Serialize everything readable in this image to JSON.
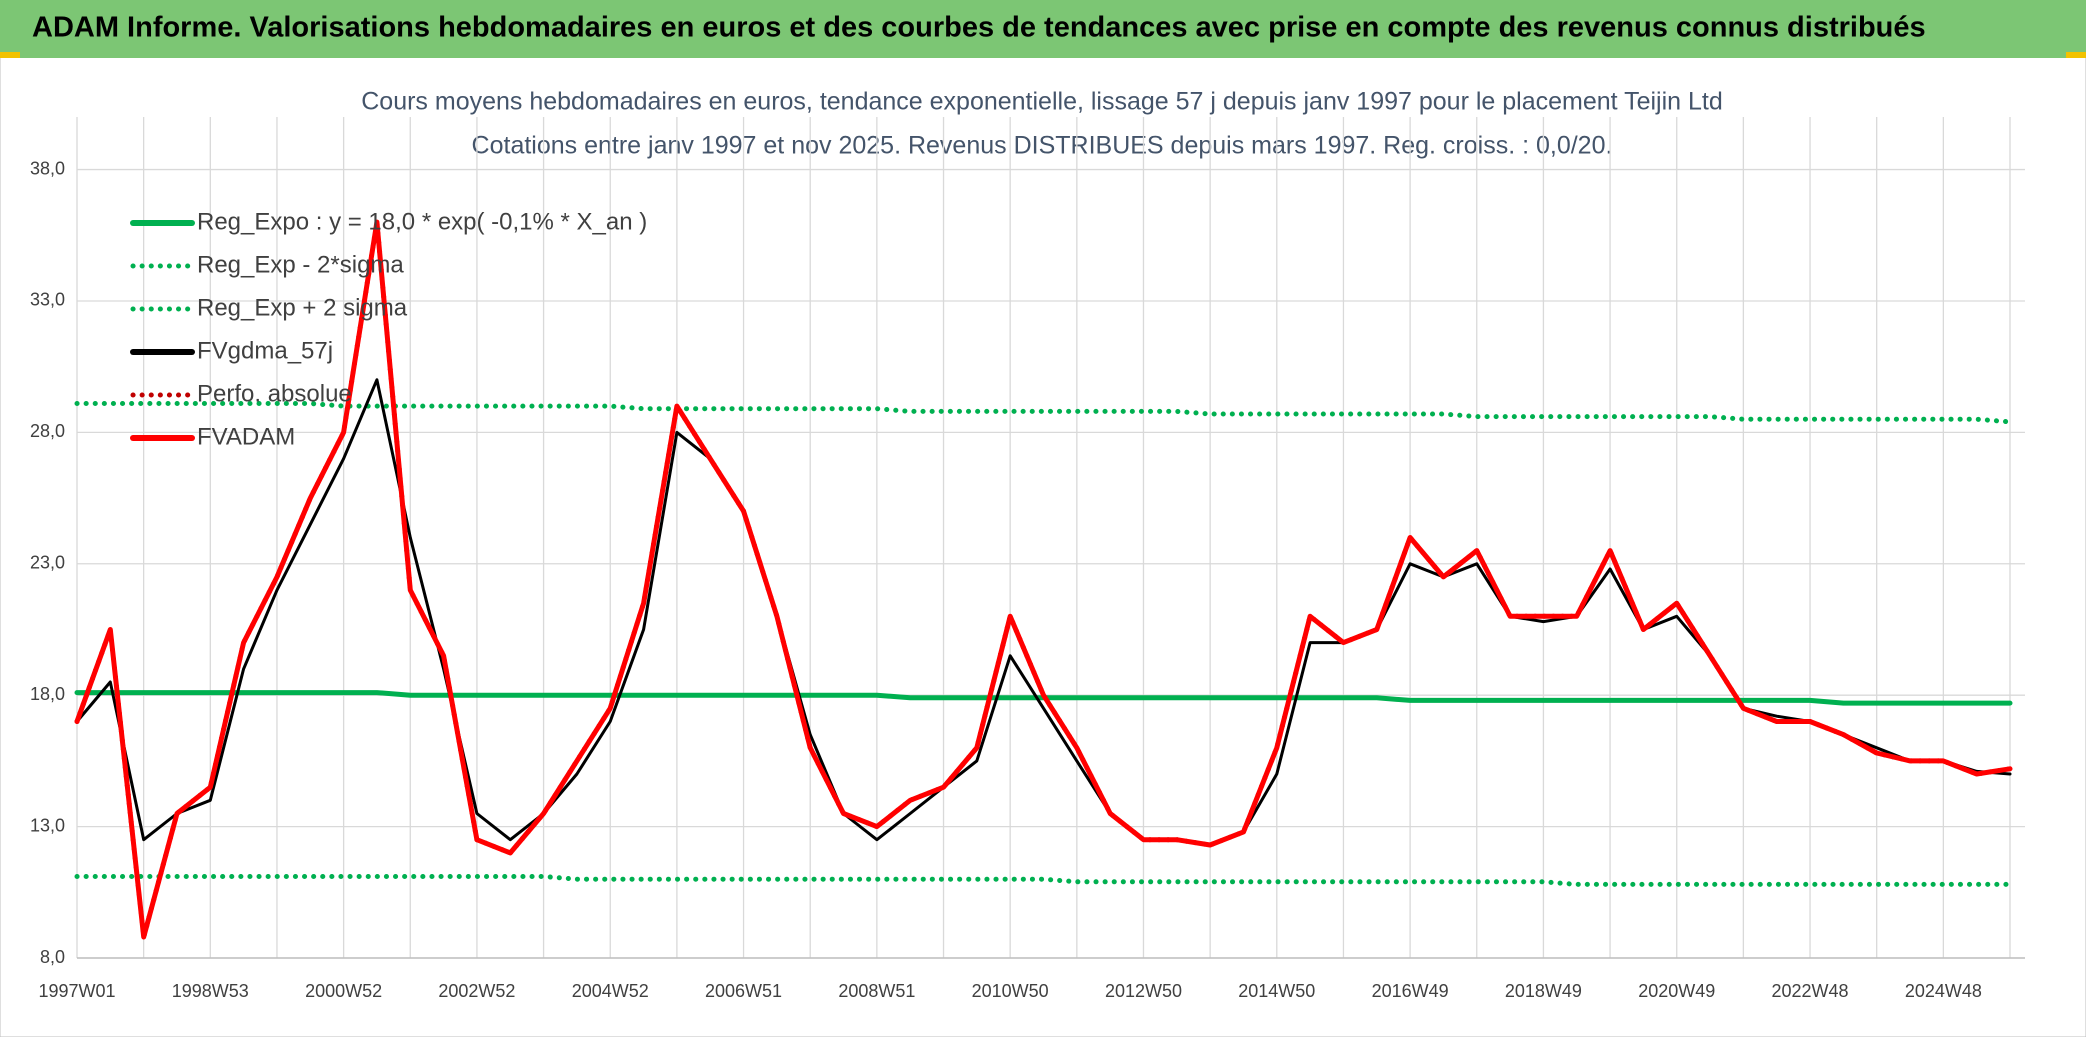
{
  "header": "ADAM Informe. Valorisations hebdomadaires en euros et des courbes de tendances avec prise en compte des revenus connus distribués",
  "chart_data": {
    "type": "line",
    "title": "Cours moyens hebdomadaires en euros, tendance exponentielle, lissage 57 j depuis janv 1997 pour le placement Teijin Ltd",
    "subtitle": "Cotations entre janv 1997 et nov 2025. Revenus DISTRIBUES depuis mars 1997. Reg. croiss. : 0,0/20.",
    "categories": [
      "1997W01",
      null,
      null,
      null,
      "1998W53",
      null,
      null,
      null,
      "2000W52",
      null,
      null,
      null,
      "2002W52",
      null,
      null,
      null,
      "2004W52",
      null,
      null,
      null,
      "2006W51",
      null,
      null,
      null,
      "2008W51",
      null,
      null,
      null,
      "2010W50",
      null,
      null,
      null,
      "2012W50",
      null,
      null,
      null,
      "2014W50",
      null,
      null,
      null,
      "2016W49",
      null,
      null,
      null,
      "2018W49",
      null,
      null,
      null,
      "2020W49",
      null,
      null,
      null,
      "2022W48",
      null,
      null,
      null,
      "2024W48",
      null,
      null
    ],
    "ylim": [
      8,
      40
    ],
    "yticks": [
      {
        "value": 8,
        "label": "8,0"
      },
      {
        "value": 13,
        "label": "13,0"
      },
      {
        "value": 18,
        "label": "18,0"
      },
      {
        "value": 23,
        "label": "23,0"
      },
      {
        "value": 28,
        "label": "28,0"
      },
      {
        "value": 33,
        "label": "33,0"
      },
      {
        "value": 38,
        "label": "38,0"
      }
    ],
    "grid": true,
    "legend": "top-left",
    "series": [
      {
        "name": "Reg_Expo : y = 18,0 * exp( -0,1% *  X_an )",
        "color": "#00b050",
        "style": "solid",
        "values": [
          18.1,
          18.1,
          18.1,
          18.1,
          18.1,
          18.1,
          18.1,
          18.1,
          18.1,
          18.1,
          18.0,
          18.0,
          18.0,
          18.0,
          18.0,
          18.0,
          18.0,
          18.0,
          18.0,
          18.0,
          18.0,
          18.0,
          18.0,
          18.0,
          18.0,
          17.9,
          17.9,
          17.9,
          17.9,
          17.9,
          17.9,
          17.9,
          17.9,
          17.9,
          17.9,
          17.9,
          17.9,
          17.9,
          17.9,
          17.9,
          17.8,
          17.8,
          17.8,
          17.8,
          17.8,
          17.8,
          17.8,
          17.8,
          17.8,
          17.8,
          17.8,
          17.8,
          17.8,
          17.7,
          17.7,
          17.7,
          17.7,
          17.7,
          17.7
        ]
      },
      {
        "name": "Reg_Exp - 2*sigma",
        "color": "#00b050",
        "style": "dotted",
        "values": [
          11.1,
          11.1,
          11.1,
          11.1,
          11.1,
          11.1,
          11.1,
          11.1,
          11.1,
          11.1,
          11.1,
          11.1,
          11.1,
          11.1,
          11.1,
          11.0,
          11.0,
          11.0,
          11.0,
          11.0,
          11.0,
          11.0,
          11.0,
          11.0,
          11.0,
          11.0,
          11.0,
          11.0,
          11.0,
          11.0,
          10.9,
          10.9,
          10.9,
          10.9,
          10.9,
          10.9,
          10.9,
          10.9,
          10.9,
          10.9,
          10.9,
          10.9,
          10.9,
          10.9,
          10.9,
          10.8,
          10.8,
          10.8,
          10.8,
          10.8,
          10.8,
          10.8,
          10.8,
          10.8,
          10.8,
          10.8,
          10.8,
          10.8,
          10.8
        ]
      },
      {
        "name": "Reg_Exp + 2 sigma",
        "color": "#00b050",
        "style": "dotted",
        "values": [
          29.1,
          29.1,
          29.1,
          29.1,
          29.1,
          29.1,
          29.1,
          29.1,
          29.0,
          29.0,
          29.0,
          29.0,
          29.0,
          29.0,
          29.0,
          29.0,
          29.0,
          28.9,
          28.9,
          28.9,
          28.9,
          28.9,
          28.9,
          28.9,
          28.9,
          28.8,
          28.8,
          28.8,
          28.8,
          28.8,
          28.8,
          28.8,
          28.8,
          28.8,
          28.7,
          28.7,
          28.7,
          28.7,
          28.7,
          28.7,
          28.7,
          28.7,
          28.6,
          28.6,
          28.6,
          28.6,
          28.6,
          28.6,
          28.6,
          28.6,
          28.5,
          28.5,
          28.5,
          28.5,
          28.5,
          28.5,
          28.5,
          28.5,
          28.4
        ]
      },
      {
        "name": "FVgdma_57j",
        "color": "#000000",
        "style": "solid",
        "values": [
          17.0,
          18.5,
          12.5,
          13.5,
          14.0,
          19.0,
          22.0,
          24.5,
          27.0,
          30.0,
          24.0,
          19.0,
          13.5,
          12.5,
          13.5,
          15.0,
          17.0,
          20.5,
          28.0,
          27.0,
          25.0,
          21.0,
          16.5,
          13.5,
          12.5,
          13.5,
          14.5,
          15.5,
          19.5,
          17.5,
          15.5,
          13.5,
          12.5,
          12.5,
          12.3,
          12.8,
          15.0,
          20.0,
          20.0,
          20.5,
          23.0,
          22.5,
          23.0,
          21.0,
          20.8,
          21.0,
          22.8,
          20.5,
          21.0,
          19.5,
          17.5,
          17.2,
          17.0,
          16.5,
          16.0,
          15.5,
          15.5,
          15.1,
          15.0
        ]
      },
      {
        "name": "Perfo. absolue",
        "color": "#c00000",
        "style": "dotted",
        "values": [
          17.0,
          20.5,
          8.8,
          13.5,
          14.5,
          20.0,
          22.5,
          25.5,
          28.0,
          36.0,
          22.0,
          19.5,
          12.5,
          12.0,
          13.5,
          15.5,
          17.5,
          21.5,
          29.0,
          27.0,
          25.0,
          21.0,
          16.0,
          13.5,
          13.0,
          14.0,
          14.5,
          16.0,
          21.0,
          18.0,
          16.0,
          13.5,
          12.5,
          12.5,
          12.3,
          12.8,
          16.0,
          21.0,
          20.0,
          20.5,
          24.0,
          22.5,
          23.5,
          21.0,
          21.0,
          21.0,
          23.5,
          20.5,
          21.5,
          19.5,
          17.5,
          17.0,
          17.0,
          16.5,
          15.8,
          15.5,
          15.5,
          15.0,
          15.2
        ]
      },
      {
        "name": "FVADAM",
        "color": "#ff0000",
        "style": "solid",
        "values": [
          17.0,
          20.5,
          8.8,
          13.5,
          14.5,
          20.0,
          22.5,
          25.5,
          28.0,
          36.0,
          22.0,
          19.5,
          12.5,
          12.0,
          13.5,
          15.5,
          17.5,
          21.5,
          29.0,
          27.0,
          25.0,
          21.0,
          16.0,
          13.5,
          13.0,
          14.0,
          14.5,
          16.0,
          21.0,
          18.0,
          16.0,
          13.5,
          12.5,
          12.5,
          12.3,
          12.8,
          16.0,
          21.0,
          20.0,
          20.5,
          24.0,
          22.5,
          23.5,
          21.0,
          21.0,
          21.0,
          23.5,
          20.5,
          21.5,
          19.5,
          17.5,
          17.0,
          17.0,
          16.5,
          15.8,
          15.5,
          15.5,
          15.0,
          15.2
        ]
      }
    ]
  }
}
